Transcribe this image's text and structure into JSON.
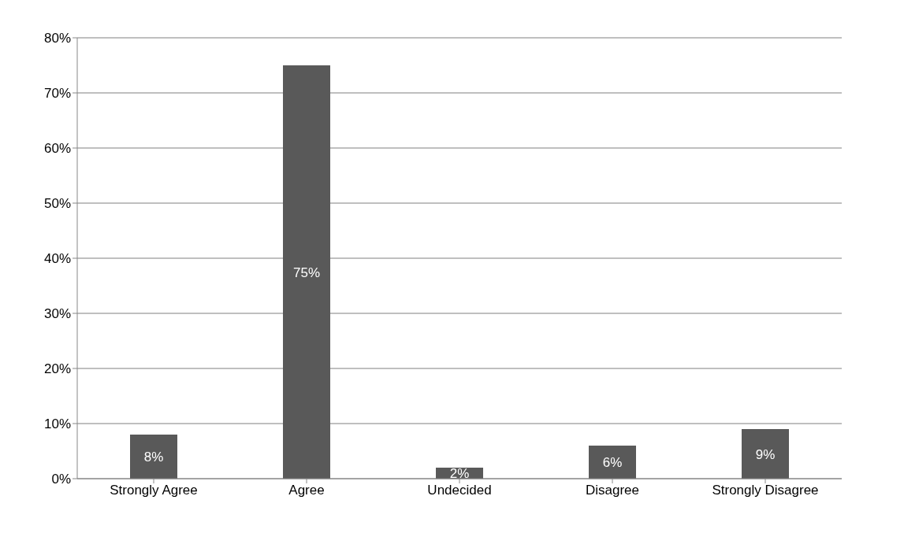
{
  "chart_data": {
    "type": "bar",
    "categories": [
      "Strongly Agree",
      "Agree",
      "Undecided",
      "Disagree",
      "Strongly Disagree"
    ],
    "values": [
      8,
      75,
      2,
      6,
      9
    ],
    "color": "#595959",
    "value_labels": [
      "8%",
      "75%",
      "2%",
      "6%",
      "9%"
    ],
    "ylim": [
      0,
      80
    ],
    "yticks": [
      {
        "value": 0,
        "label": "0%"
      },
      {
        "value": 10,
        "label": "10%"
      },
      {
        "value": 20,
        "label": "20%"
      },
      {
        "value": 30,
        "label": "30%"
      },
      {
        "value": 40,
        "label": "40%"
      },
      {
        "value": 50,
        "label": "50%"
      },
      {
        "value": 60,
        "label": "60%"
      },
      {
        "value": 70,
        "label": "70%"
      },
      {
        "value": 80,
        "label": "80%"
      }
    ],
    "grid": "y"
  }
}
